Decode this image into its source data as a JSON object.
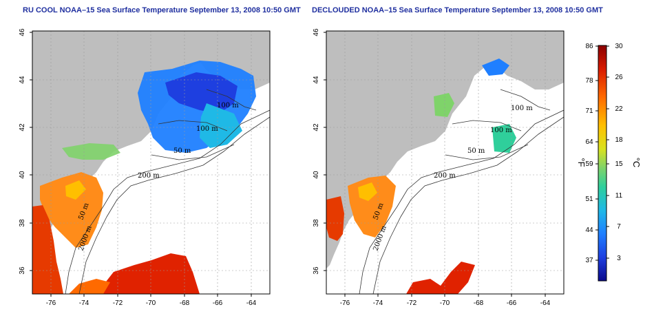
{
  "left_map": {
    "title": "RU COOL NOAA–15 Sea Surface Temperature September 13, 2008 10:50 GMT",
    "contour_labels": [
      "100 m",
      "100 m",
      "50 m",
      "200 m",
      "50 m",
      "2000 m"
    ]
  },
  "right_map": {
    "title": "DECLOUDED NOAA–15 Sea Surface Temperature September 13, 2008 10:50 GMT",
    "contour_labels": [
      "100 m",
      "100 m",
      "50 m",
      "200 m",
      "50 m",
      "2000 m"
    ]
  },
  "axes": {
    "lat_ticks": [
      "46",
      "44",
      "42",
      "40",
      "38",
      "36"
    ],
    "lon_ticks": [
      "-76",
      "-74",
      "-72",
      "-70",
      "-68",
      "-66",
      "-64"
    ]
  },
  "colorbar": {
    "fahrenheit_unit": "°F",
    "celsius_unit": "°C",
    "fahrenheit_ticks": [
      "86",
      "78",
      "71",
      "64",
      "59",
      "51",
      "44",
      "37"
    ],
    "celsius_ticks": [
      "30",
      "26",
      "22",
      "18",
      "15",
      "11",
      "7",
      "3"
    ],
    "gradient_colors": [
      "#8a0000",
      "#d81a00",
      "#ff6a00",
      "#ffbf00",
      "#d9e21f",
      "#7fd36a",
      "#2fcf9b",
      "#1fb9e6",
      "#1f7fff",
      "#1e3fe0",
      "#0a0a8c"
    ]
  },
  "colors": {
    "land": "#bebebe",
    "ocean": "#ffffff",
    "title": "#1f2f9f"
  }
}
